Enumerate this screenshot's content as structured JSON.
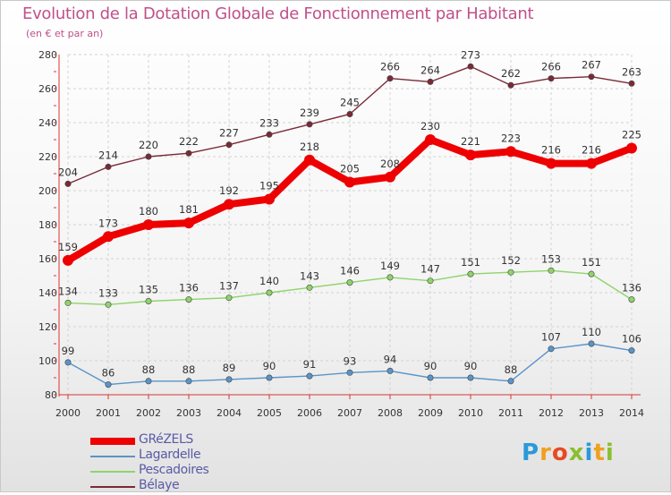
{
  "title": "Evolution de la Dotation Globale de Fonctionnement par Habitant",
  "subtitle": "(en € et par an)",
  "chart_data": {
    "type": "line",
    "title": "Evolution de la Dotation Globale de Fonctionnement par Habitant",
    "subtitle": "(en € et par an)",
    "x": [
      "2000",
      "2001",
      "2002",
      "2003",
      "2004",
      "2005",
      "2006",
      "2007",
      "2008",
      "2009",
      "2010",
      "2011",
      "2012",
      "2013",
      "2014"
    ],
    "ylim": [
      80,
      280
    ],
    "yticks": [
      80,
      100,
      120,
      140,
      160,
      180,
      200,
      220,
      240,
      260,
      280
    ],
    "grid": true,
    "legend_position": "bottom-left",
    "series": [
      {
        "name": "Bélaye",
        "color": "#7a2a36",
        "values": [
          204,
          214,
          220,
          222,
          227,
          233,
          239,
          245,
          266,
          264,
          273,
          262,
          266,
          267,
          263
        ]
      },
      {
        "name": "Pescadoires",
        "color": "#8fd46a",
        "values": [
          134,
          133,
          135,
          136,
          137,
          140,
          143,
          146,
          149,
          147,
          151,
          152,
          153,
          151,
          136
        ]
      },
      {
        "name": "Lagardelle",
        "color": "#5a94c8",
        "values": [
          99,
          86,
          88,
          88,
          89,
          90,
          91,
          93,
          94,
          90,
          90,
          88,
          107,
          110,
          106
        ]
      },
      {
        "name": "GRéZELS",
        "color": "#ee0000",
        "values": [
          159,
          173,
          180,
          181,
          192,
          195,
          218,
          205,
          208,
          230,
          221,
          223,
          216,
          216,
          225
        ]
      }
    ]
  },
  "legend": [
    {
      "name": "GRéZELS",
      "color": "#ee0000",
      "thickness": 8
    },
    {
      "name": "Lagardelle",
      "color": "#5a94c8",
      "thickness": 2
    },
    {
      "name": "Pescadoires",
      "color": "#8fd46a",
      "thickness": 2
    },
    {
      "name": "Bélaye",
      "color": "#7a2a36",
      "thickness": 2
    }
  ],
  "logo": {
    "letters": [
      "P",
      "r",
      "o",
      "x",
      "i",
      "t",
      "i"
    ],
    "colors": [
      "#2a9ad8",
      "#f0a020",
      "#e84a20",
      "#8abf30",
      "#2a9ad8",
      "#f0a020",
      "#8abf30"
    ]
  }
}
